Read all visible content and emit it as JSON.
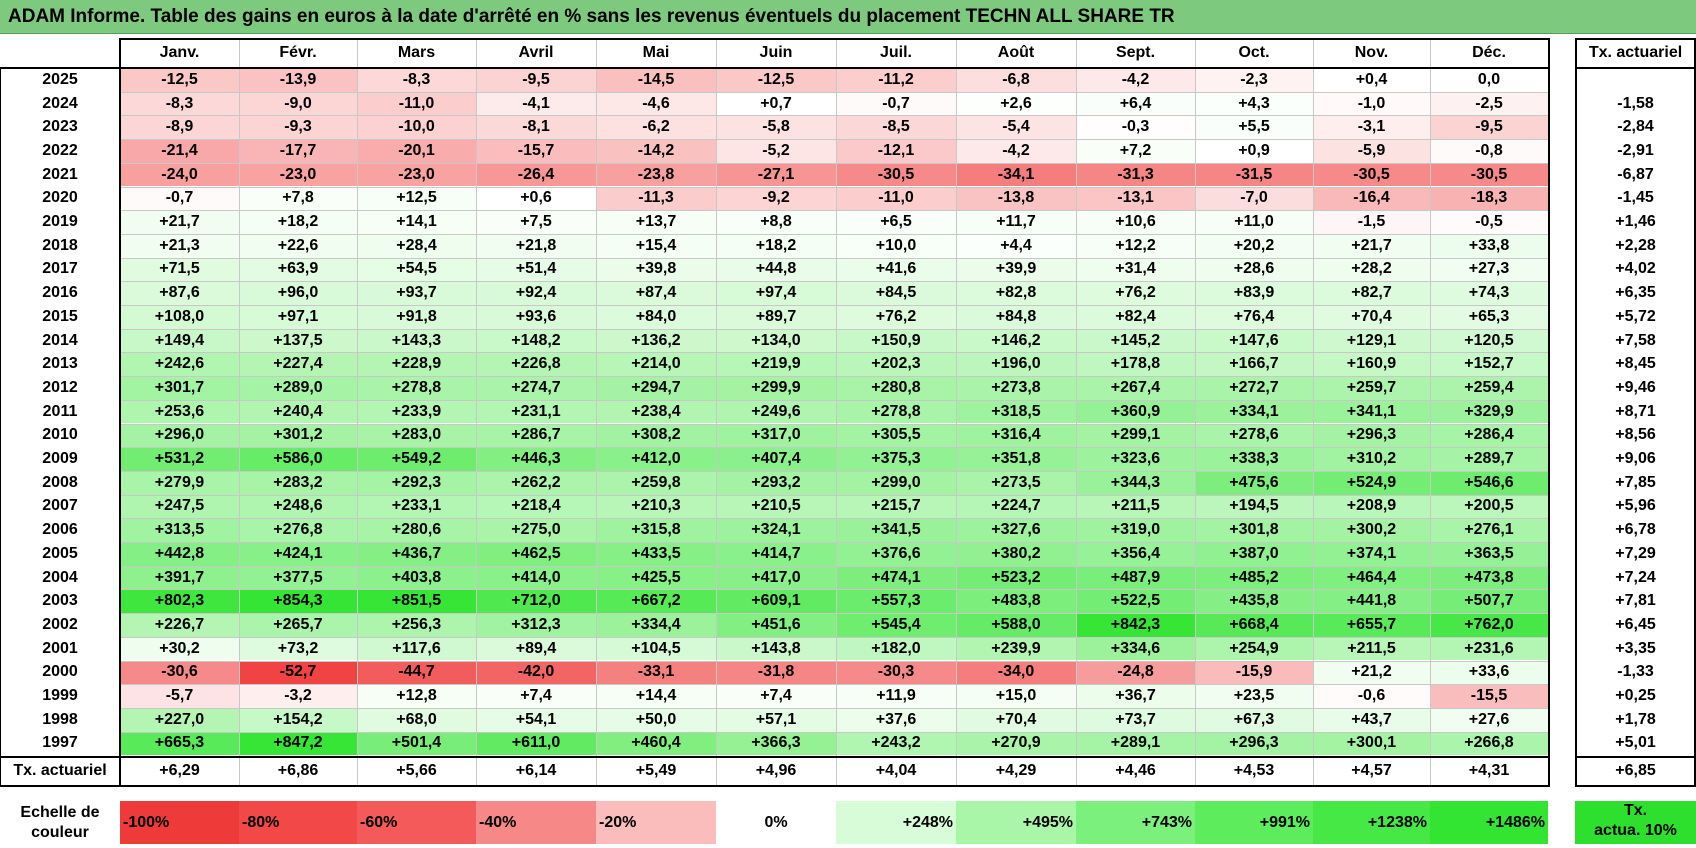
{
  "title": "ADAM Informe. Table des gains en euros à la date d'arrêté en % sans les revenus éventuels du placement TECHN ALL SHARE TR",
  "months": [
    "Janv.",
    "Févr.",
    "Mars",
    "Avril",
    "Mai",
    "Juin",
    "Juil.",
    "Août",
    "Sept.",
    "Oct.",
    "Nov.",
    "Déc."
  ],
  "rate_header": "Tx. actuariel",
  "rows": [
    {
      "year": "2025",
      "values": [
        "-12,5",
        "-13,9",
        "-8,3",
        "-9,5",
        "-14,5",
        "-12,5",
        "-11,2",
        "-6,8",
        "-4,2",
        "-2,3",
        "+0,4",
        "0,0"
      ],
      "rate": ""
    },
    {
      "year": "2024",
      "values": [
        "-8,3",
        "-9,0",
        "-11,0",
        "-4,1",
        "-4,6",
        "+0,7",
        "-0,7",
        "+2,6",
        "+6,4",
        "+4,3",
        "-1,0",
        "-2,5"
      ],
      "rate": "-1,58"
    },
    {
      "year": "2023",
      "values": [
        "-8,9",
        "-9,3",
        "-10,0",
        "-8,1",
        "-6,2",
        "-5,8",
        "-8,5",
        "-5,4",
        "-0,3",
        "+5,5",
        "-3,1",
        "-9,5"
      ],
      "rate": "-2,84"
    },
    {
      "year": "2022",
      "values": [
        "-21,4",
        "-17,7",
        "-20,1",
        "-15,7",
        "-14,2",
        "-5,2",
        "-12,1",
        "-4,2",
        "+7,2",
        "+0,9",
        "-5,9",
        "-0,8"
      ],
      "rate": "-2,91"
    },
    {
      "year": "2021",
      "values": [
        "-24,0",
        "-23,0",
        "-23,0",
        "-26,4",
        "-23,8",
        "-27,1",
        "-30,5",
        "-34,1",
        "-31,3",
        "-31,5",
        "-30,5",
        "-30,5"
      ],
      "rate": "-6,87"
    },
    {
      "year": "2020",
      "values": [
        "-0,7",
        "+7,8",
        "+12,5",
        "+0,6",
        "-11,3",
        "-9,2",
        "-11,0",
        "-13,8",
        "-13,1",
        "-7,0",
        "-16,4",
        "-18,3"
      ],
      "rate": "-1,45"
    },
    {
      "year": "2019",
      "values": [
        "+21,7",
        "+18,2",
        "+14,1",
        "+7,5",
        "+13,7",
        "+8,8",
        "+6,5",
        "+11,7",
        "+10,6",
        "+11,0",
        "-1,5",
        "-0,5"
      ],
      "rate": "+1,46"
    },
    {
      "year": "2018",
      "values": [
        "+21,3",
        "+22,6",
        "+28,4",
        "+21,8",
        "+15,4",
        "+18,2",
        "+10,0",
        "+4,4",
        "+12,2",
        "+20,2",
        "+21,7",
        "+33,8"
      ],
      "rate": "+2,28"
    },
    {
      "year": "2017",
      "values": [
        "+71,5",
        "+63,9",
        "+54,5",
        "+51,4",
        "+39,8",
        "+44,8",
        "+41,6",
        "+39,9",
        "+31,4",
        "+28,6",
        "+28,2",
        "+27,3"
      ],
      "rate": "+4,02"
    },
    {
      "year": "2016",
      "values": [
        "+87,6",
        "+96,0",
        "+93,7",
        "+92,4",
        "+87,4",
        "+97,4",
        "+84,5",
        "+82,8",
        "+76,2",
        "+83,9",
        "+82,7",
        "+74,3"
      ],
      "rate": "+6,35"
    },
    {
      "year": "2015",
      "values": [
        "+108,0",
        "+97,1",
        "+91,8",
        "+93,6",
        "+84,0",
        "+89,7",
        "+76,2",
        "+84,8",
        "+82,4",
        "+76,4",
        "+70,4",
        "+65,3"
      ],
      "rate": "+5,72"
    },
    {
      "year": "2014",
      "values": [
        "+149,4",
        "+137,5",
        "+143,3",
        "+148,2",
        "+136,2",
        "+134,0",
        "+150,9",
        "+146,2",
        "+145,2",
        "+147,6",
        "+129,1",
        "+120,5"
      ],
      "rate": "+7,58"
    },
    {
      "year": "2013",
      "values": [
        "+242,6",
        "+227,4",
        "+228,9",
        "+226,8",
        "+214,0",
        "+219,9",
        "+202,3",
        "+196,0",
        "+178,8",
        "+166,7",
        "+160,9",
        "+152,7"
      ],
      "rate": "+8,45"
    },
    {
      "year": "2012",
      "values": [
        "+301,7",
        "+289,0",
        "+278,8",
        "+274,7",
        "+294,7",
        "+299,9",
        "+280,8",
        "+273,8",
        "+267,4",
        "+272,7",
        "+259,7",
        "+259,4"
      ],
      "rate": "+9,46"
    },
    {
      "year": "2011",
      "values": [
        "+253,6",
        "+240,4",
        "+233,9",
        "+231,1",
        "+238,4",
        "+249,6",
        "+278,8",
        "+318,5",
        "+360,9",
        "+334,1",
        "+341,1",
        "+329,9"
      ],
      "rate": "+8,71"
    },
    {
      "year": "2010",
      "values": [
        "+296,0",
        "+301,2",
        "+283,0",
        "+286,7",
        "+308,2",
        "+317,0",
        "+305,5",
        "+316,4",
        "+299,1",
        "+278,6",
        "+296,3",
        "+286,4"
      ],
      "rate": "+8,56"
    },
    {
      "year": "2009",
      "values": [
        "+531,2",
        "+586,0",
        "+549,2",
        "+446,3",
        "+412,0",
        "+407,4",
        "+375,3",
        "+351,8",
        "+323,6",
        "+338,3",
        "+310,2",
        "+289,7"
      ],
      "rate": "+9,06"
    },
    {
      "year": "2008",
      "values": [
        "+279,9",
        "+283,2",
        "+292,3",
        "+262,2",
        "+259,8",
        "+293,2",
        "+299,0",
        "+273,5",
        "+344,3",
        "+475,6",
        "+524,9",
        "+546,6"
      ],
      "rate": "+7,85"
    },
    {
      "year": "2007",
      "values": [
        "+247,5",
        "+248,6",
        "+233,1",
        "+218,4",
        "+210,3",
        "+210,5",
        "+215,7",
        "+224,7",
        "+211,5",
        "+194,5",
        "+208,9",
        "+200,5"
      ],
      "rate": "+5,96"
    },
    {
      "year": "2006",
      "values": [
        "+313,5",
        "+276,8",
        "+280,6",
        "+275,0",
        "+315,8",
        "+324,1",
        "+341,5",
        "+327,6",
        "+319,0",
        "+301,8",
        "+300,2",
        "+276,1"
      ],
      "rate": "+6,78"
    },
    {
      "year": "2005",
      "values": [
        "+442,8",
        "+424,1",
        "+436,7",
        "+462,5",
        "+433,5",
        "+414,7",
        "+376,6",
        "+380,2",
        "+356,4",
        "+387,0",
        "+374,1",
        "+363,5"
      ],
      "rate": "+7,29"
    },
    {
      "year": "2004",
      "values": [
        "+391,7",
        "+377,5",
        "+403,8",
        "+414,0",
        "+425,5",
        "+417,0",
        "+474,1",
        "+523,2",
        "+487,9",
        "+485,2",
        "+464,4",
        "+473,8"
      ],
      "rate": "+7,24"
    },
    {
      "year": "2003",
      "values": [
        "+802,3",
        "+854,3",
        "+851,5",
        "+712,0",
        "+667,2",
        "+609,1",
        "+557,3",
        "+483,8",
        "+522,5",
        "+435,8",
        "+441,8",
        "+507,7"
      ],
      "rate": "+7,81"
    },
    {
      "year": "2002",
      "values": [
        "+226,7",
        "+265,7",
        "+256,3",
        "+312,3",
        "+334,4",
        "+451,6",
        "+545,4",
        "+588,0",
        "+842,3",
        "+668,4",
        "+655,7",
        "+762,0"
      ],
      "rate": "+6,45"
    },
    {
      "year": "2001",
      "values": [
        "+30,2",
        "+73,2",
        "+117,6",
        "+89,4",
        "+104,5",
        "+143,8",
        "+182,0",
        "+239,9",
        "+334,6",
        "+254,9",
        "+211,5",
        "+231,6"
      ],
      "rate": "+3,35"
    },
    {
      "year": "2000",
      "values": [
        "-30,6",
        "-52,7",
        "-44,7",
        "-42,0",
        "-33,1",
        "-31,8",
        "-30,3",
        "-34,0",
        "-24,8",
        "-15,9",
        "+21,2",
        "+33,6"
      ],
      "rate": "-1,33"
    },
    {
      "year": "1999",
      "values": [
        "-5,7",
        "-3,2",
        "+12,8",
        "+7,4",
        "+14,4",
        "+7,4",
        "+11,9",
        "+15,0",
        "+36,7",
        "+23,5",
        "-0,6",
        "-15,5"
      ],
      "rate": "+0,25"
    },
    {
      "year": "1998",
      "values": [
        "+227,0",
        "+154,2",
        "+68,0",
        "+54,1",
        "+50,0",
        "+57,1",
        "+37,6",
        "+70,4",
        "+73,7",
        "+67,3",
        "+43,7",
        "+27,6"
      ],
      "rate": "+1,78"
    },
    {
      "year": "1997",
      "values": [
        "+665,3",
        "+847,2",
        "+501,4",
        "+611,0",
        "+460,4",
        "+366,3",
        "+243,2",
        "+270,9",
        "+289,1",
        "+296,3",
        "+300,1",
        "+266,8"
      ],
      "rate": "+5,01"
    }
  ],
  "summary": {
    "label": "Tx. actuariel",
    "values": [
      "+6,29",
      "+6,86",
      "+5,66",
      "+6,14",
      "+5,49",
      "+4,96",
      "+4,04",
      "+4,29",
      "+4,46",
      "+4,53",
      "+4,57",
      "+4,31"
    ],
    "rate": "+6,85"
  },
  "legend": {
    "label_line1": "Echelle de",
    "label_line2": "couleur",
    "items": [
      {
        "text": "-100%",
        "color": "#ef3a3a",
        "align": "left"
      },
      {
        "text": "-80%",
        "color": "#f24848",
        "align": "left"
      },
      {
        "text": "-60%",
        "color": "#f45a5a",
        "align": "left"
      },
      {
        "text": "-40%",
        "color": "#f78888",
        "align": "left"
      },
      {
        "text": "-20%",
        "color": "#fbbcbc",
        "align": "left"
      },
      {
        "text": "0%",
        "color": "#ffffff",
        "align": "center"
      },
      {
        "text": "+248%",
        "color": "#d8fbd8",
        "align": "right"
      },
      {
        "text": "+495%",
        "color": "#a9f6a9",
        "align": "right"
      },
      {
        "text": "+743%",
        "color": "#7cf07c",
        "align": "right"
      },
      {
        "text": "+991%",
        "color": "#5cec5c",
        "align": "right"
      },
      {
        "text": "+1238%",
        "color": "#45e845",
        "align": "right"
      },
      {
        "text": "+1486%",
        "color": "#33e533",
        "align": "right"
      }
    ],
    "rate_line1": "Tx.",
    "rate_line2": "actua. 10%",
    "rate_color": "#2ee02e"
  },
  "colors": {
    "title_bg": "#7dc97e",
    "negative": "#f03c3c",
    "positive": "#34e534"
  }
}
